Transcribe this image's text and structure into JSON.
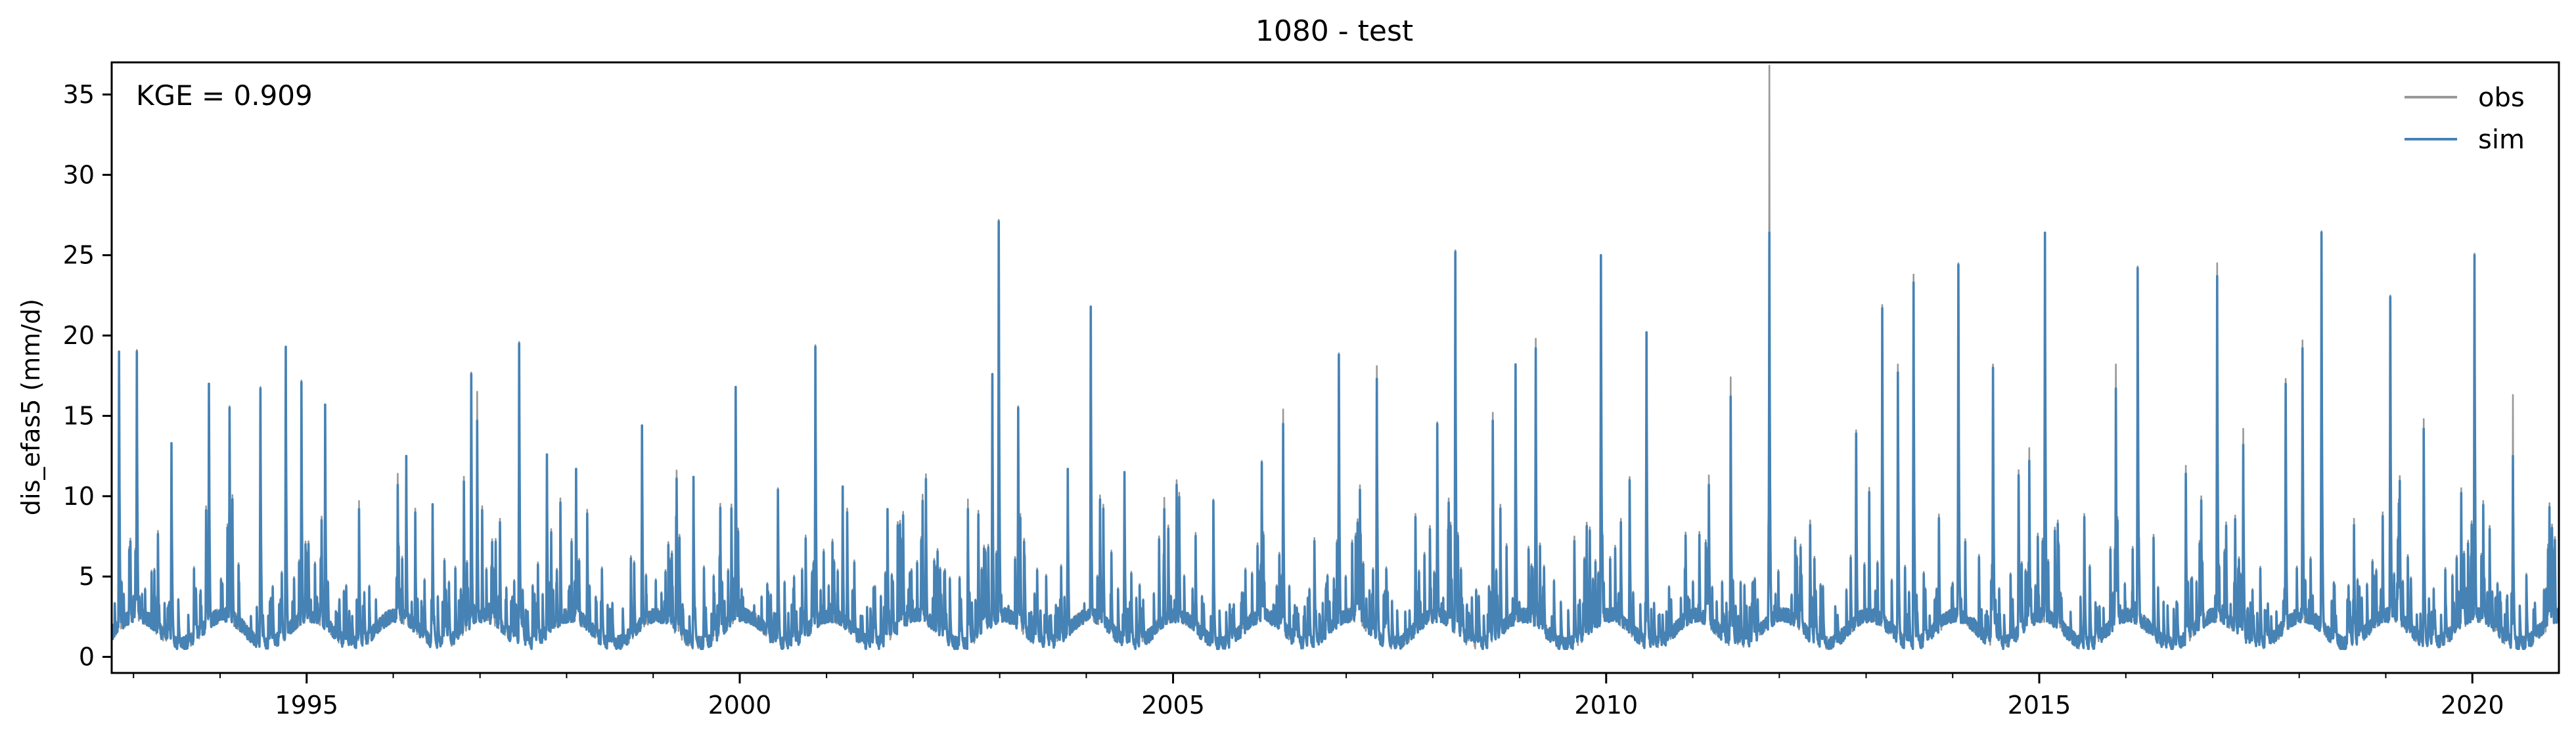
{
  "chart_data": {
    "type": "line",
    "title": "1080 - test",
    "xlabel": "",
    "ylabel": "dis_efas5 (mm/d)",
    "annotation": "KGE = 0.909",
    "xlim": [
      "1992-10-01",
      "2020-12-31"
    ],
    "ylim": [
      -1,
      37
    ],
    "x_ticks": [
      "1995-01-01",
      "2000-01-01",
      "2005-01-01",
      "2010-01-01",
      "2015-01-01",
      "2020-01-01"
    ],
    "x_tick_labels": [
      "1995",
      "2000",
      "2005",
      "2010",
      "2015",
      "2020"
    ],
    "y_ticks": [
      0,
      5,
      10,
      15,
      20,
      25,
      30,
      35
    ],
    "y_tick_labels": [
      "0",
      "5",
      "10",
      "15",
      "20",
      "25",
      "30",
      "35"
    ],
    "grid": false,
    "legend_position": "top-right",
    "series": [
      {
        "name": "obs",
        "color": "#999999",
        "peaks": [
          [
            "1992-11-01",
            14.5
          ],
          [
            "1993-01-15",
            17.9
          ],
          [
            "1993-06-10",
            12.0
          ],
          [
            "1993-11-15",
            15.8
          ],
          [
            "1994-02-10",
            14.4
          ],
          [
            "1994-06-20",
            15.6
          ],
          [
            "1994-10-05",
            18.1
          ],
          [
            "1994-12-10",
            16.0
          ],
          [
            "1995-03-20",
            13.8
          ],
          [
            "1995-08-10",
            8.5
          ],
          [
            "1996-01-20",
            10.2
          ],
          [
            "1996-02-25",
            11.3
          ],
          [
            "1996-06-15",
            8.0
          ],
          [
            "1996-11-25",
            16.5
          ],
          [
            "1996-12-20",
            15.3
          ],
          [
            "1997-06-15",
            18.4
          ],
          [
            "1997-10-10",
            11.4
          ],
          [
            "1998-02-10",
            10.5
          ],
          [
            "1998-11-15",
            13.2
          ],
          [
            "1999-04-10",
            10.4
          ],
          [
            "1999-06-20",
            10.0
          ],
          [
            "1999-12-15",
            15.6
          ],
          [
            "2000-06-10",
            9.3
          ],
          [
            "2000-11-15",
            18.2
          ],
          [
            "2001-03-10",
            9.3
          ],
          [
            "2001-09-15",
            7.6
          ],
          [
            "2002-02-10",
            8.9
          ],
          [
            "2002-08-20",
            8.6
          ],
          [
            "2002-12-01",
            16.4
          ],
          [
            "2002-12-28",
            26.0
          ],
          [
            "2003-03-20",
            14.4
          ],
          [
            "2003-10-15",
            10.5
          ],
          [
            "2004-01-20",
            20.6
          ],
          [
            "2004-06-10",
            10.3
          ],
          [
            "2004-11-25",
            8.7
          ],
          [
            "2005-06-20",
            8.6
          ],
          [
            "2006-01-10",
            11.0
          ],
          [
            "2006-04-10",
            14.2
          ],
          [
            "2006-08-20",
            6.2
          ],
          [
            "2006-12-01",
            17.7
          ],
          [
            "2007-05-10",
            16.9
          ],
          [
            "2007-10-20",
            7.7
          ],
          [
            "2008-01-20",
            13.4
          ],
          [
            "2008-04-05",
            24.1
          ],
          [
            "2008-09-10",
            14.0
          ],
          [
            "2008-12-15",
            17.0
          ],
          [
            "2009-03-10",
            18.6
          ],
          [
            "2009-08-20",
            6.3
          ],
          [
            "2009-12-10",
            20.2
          ],
          [
            "2010-04-10",
            10.0
          ],
          [
            "2010-06-20",
            19.0
          ],
          [
            "2011-03-10",
            10.1
          ],
          [
            "2011-06-10",
            16.2
          ],
          [
            "2011-11-20",
            35.6
          ],
          [
            "2012-05-10",
            7.3
          ],
          [
            "2012-11-20",
            12.9
          ],
          [
            "2013-03-10",
            20.7
          ],
          [
            "2013-05-15",
            17.0
          ],
          [
            "2013-07-20",
            22.6
          ],
          [
            "2014-01-25",
            23.3
          ],
          [
            "2014-06-20",
            17.0
          ],
          [
            "2014-11-20",
            11.8
          ],
          [
            "2015-01-25",
            25.2
          ],
          [
            "2015-07-10",
            7.7
          ],
          [
            "2015-11-20",
            17.0
          ],
          [
            "2016-02-20",
            23.1
          ],
          [
            "2016-09-10",
            10.7
          ],
          [
            "2017-01-20",
            23.3
          ],
          [
            "2017-05-10",
            13.0
          ],
          [
            "2017-11-05",
            16.1
          ],
          [
            "2018-01-15",
            18.5
          ],
          [
            "2018-04-05",
            25.3
          ],
          [
            "2018-08-20",
            7.4
          ],
          [
            "2019-01-20",
            21.3
          ],
          [
            "2019-06-10",
            13.6
          ],
          [
            "2019-11-15",
            9.3
          ],
          [
            "2020-01-10",
            23.9
          ],
          [
            "2020-06-20",
            15.1
          ],
          [
            "2020-11-15",
            5.8
          ]
        ]
      },
      {
        "name": "sim",
        "color": "#4682b4",
        "peaks": [
          [
            "1992-11-01",
            17.8
          ],
          [
            "1993-01-15",
            17.8
          ],
          [
            "1993-06-10",
            12.1
          ],
          [
            "1993-11-15",
            15.8
          ],
          [
            "1994-02-10",
            14.3
          ],
          [
            "1994-06-20",
            15.5
          ],
          [
            "1994-10-05",
            18.1
          ],
          [
            "1994-12-10",
            15.9
          ],
          [
            "1995-03-20",
            14.5
          ],
          [
            "1995-08-10",
            8.0
          ],
          [
            "1996-01-20",
            9.5
          ],
          [
            "1996-02-25",
            11.3
          ],
          [
            "1996-06-15",
            8.3
          ],
          [
            "1996-11-25",
            16.4
          ],
          [
            "1996-12-20",
            13.5
          ],
          [
            "1997-06-15",
            18.3
          ],
          [
            "1997-10-10",
            11.4
          ],
          [
            "1998-02-10",
            10.5
          ],
          [
            "1998-11-15",
            13.2
          ],
          [
            "1999-04-10",
            9.9
          ],
          [
            "1999-06-20",
            10.0
          ],
          [
            "1999-12-15",
            15.6
          ],
          [
            "2000-06-10",
            9.2
          ],
          [
            "2000-11-15",
            18.1
          ],
          [
            "2001-03-10",
            9.4
          ],
          [
            "2001-09-15",
            8.0
          ],
          [
            "2002-02-10",
            8.5
          ],
          [
            "2002-08-20",
            8.0
          ],
          [
            "2002-12-01",
            16.4
          ],
          [
            "2002-12-28",
            25.9
          ],
          [
            "2003-03-20",
            14.3
          ],
          [
            "2003-10-15",
            10.5
          ],
          [
            "2004-01-20",
            20.6
          ],
          [
            "2004-06-10",
            10.3
          ],
          [
            "2004-11-25",
            8.0
          ],
          [
            "2005-06-20",
            8.5
          ],
          [
            "2006-01-10",
            10.9
          ],
          [
            "2006-04-10",
            13.3
          ],
          [
            "2006-08-20",
            6.0
          ],
          [
            "2006-12-01",
            17.6
          ],
          [
            "2007-05-10",
            16.1
          ],
          [
            "2007-10-20",
            7.5
          ],
          [
            "2008-01-20",
            13.3
          ],
          [
            "2008-04-05",
            24.0
          ],
          [
            "2008-09-10",
            13.5
          ],
          [
            "2008-12-15",
            17.0
          ],
          [
            "2009-03-10",
            18.0
          ],
          [
            "2009-08-20",
            6.0
          ],
          [
            "2009-12-10",
            23.8
          ],
          [
            "2010-04-10",
            9.8
          ],
          [
            "2010-06-20",
            19.0
          ],
          [
            "2011-03-10",
            9.5
          ],
          [
            "2011-06-10",
            15.0
          ],
          [
            "2011-11-20",
            25.2
          ],
          [
            "2012-05-10",
            7.0
          ],
          [
            "2012-11-20",
            12.7
          ],
          [
            "2013-03-10",
            20.5
          ],
          [
            "2013-05-15",
            16.5
          ],
          [
            "2013-07-20",
            22.1
          ],
          [
            "2014-01-25",
            23.2
          ],
          [
            "2014-06-20",
            16.8
          ],
          [
            "2014-11-20",
            11.0
          ],
          [
            "2015-01-25",
            25.2
          ],
          [
            "2015-07-10",
            7.5
          ],
          [
            "2015-11-20",
            15.5
          ],
          [
            "2016-02-20",
            23.0
          ],
          [
            "2016-09-10",
            10.2
          ],
          [
            "2017-01-20",
            22.5
          ],
          [
            "2017-05-10",
            12.0
          ],
          [
            "2017-11-05",
            15.8
          ],
          [
            "2018-01-15",
            18.0
          ],
          [
            "2018-04-05",
            25.2
          ],
          [
            "2018-08-20",
            7.0
          ],
          [
            "2019-01-20",
            21.2
          ],
          [
            "2019-06-10",
            13.0
          ],
          [
            "2019-11-15",
            9.0
          ],
          [
            "2020-01-10",
            23.8
          ],
          [
            "2020-06-20",
            11.3
          ],
          [
            "2020-11-15",
            5.5
          ]
        ]
      }
    ]
  }
}
